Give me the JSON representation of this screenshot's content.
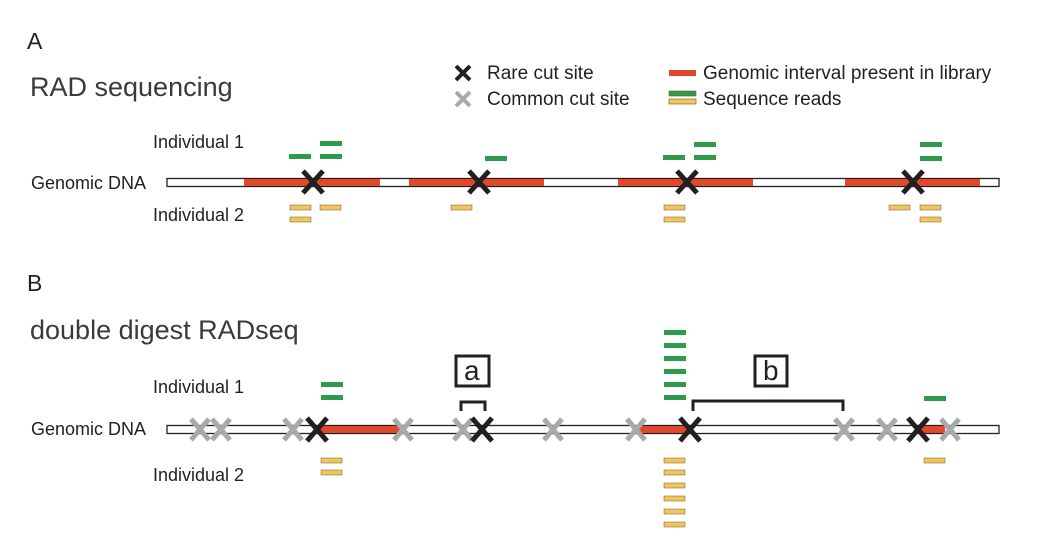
{
  "panels": {
    "a": {
      "letter": "A",
      "title": "RAD sequencing"
    },
    "b": {
      "letter": "B",
      "title": "double digest RADseq"
    }
  },
  "legend": {
    "rare_cut_site": "Rare cut site",
    "common_cut_site": "Common cut site",
    "genomic_interval": "Genomic interval present in library",
    "sequence_reads": "Sequence reads"
  },
  "labels": {
    "individual_1": "Individual 1",
    "individual_2": "Individual 2",
    "genomic_dna": "Genomic DNA",
    "fragment_a": "a",
    "fragment_b": "b"
  },
  "colors": {
    "rare_cut": "#231f20",
    "common_cut": "#a7a9ac",
    "interval": "#e0482c",
    "read_individual_1": "#2e9a4b",
    "read_individual_2": "#f2c45c",
    "read_outline": "#6b5a2a"
  },
  "icons": {
    "rare_cut_site": "x-mark-black",
    "common_cut_site": "x-mark-gray"
  }
}
